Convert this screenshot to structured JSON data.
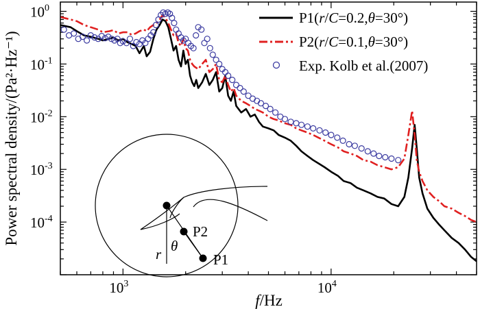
{
  "chart_data": {
    "type": "line",
    "x_scale": "log",
    "y_scale": "log",
    "xlim": [
      500,
      50000
    ],
    "ylim": [
      1e-05,
      1.5
    ],
    "xlabel_italic": "f",
    "xlabel_rest": "/Hz",
    "ylabel": "Power spectral density/(Pa²·Hz⁻¹)",
    "x_ticks": [
      {
        "value": 1000,
        "base": "10",
        "exp": "3"
      },
      {
        "value": 10000,
        "base": "10",
        "exp": "4"
      }
    ],
    "y_ticks": [
      {
        "value": 1.0,
        "label": "10",
        "exp": "0"
      },
      {
        "value": 0.1,
        "label": "10",
        "exp": "-1"
      },
      {
        "value": 0.01,
        "label": "10",
        "exp": "-2"
      },
      {
        "value": 0.001,
        "label": "10",
        "exp": "-3"
      },
      {
        "value": 0.0001,
        "label": "10",
        "exp": "-4"
      }
    ],
    "series": [
      {
        "name": "P1",
        "legend_parts": [
          "P1(",
          "r",
          "/",
          "C",
          "=0.2,",
          "θ",
          "=30°)"
        ],
        "color": "#000000",
        "style": "solid",
        "x": [
          500,
          560,
          600,
          650,
          700,
          760,
          800,
          860,
          900,
          950,
          1000,
          1050,
          1100,
          1150,
          1200,
          1260,
          1300,
          1350,
          1400,
          1450,
          1500,
          1550,
          1600,
          1650,
          1700,
          1750,
          1800,
          1850,
          1900,
          1950,
          2000,
          2050,
          2100,
          2150,
          2200,
          2250,
          2300,
          2400,
          2500,
          2600,
          2700,
          2800,
          2900,
          3000,
          3100,
          3200,
          3300,
          3400,
          3500,
          3700,
          3900,
          4100,
          4300,
          4500,
          4700,
          5000,
          5300,
          5600,
          6000,
          6400,
          6800,
          7200,
          7700,
          8200,
          8700,
          9300,
          10000,
          10800,
          11500,
          12400,
          13300,
          14300,
          15500,
          16700,
          18000,
          19500,
          21000,
          22500,
          23500,
          24500,
          25200,
          25800,
          26500,
          27500,
          29000,
          31000,
          33000,
          35000,
          38000,
          41000,
          44000,
          47000,
          50000
        ],
        "y": [
          0.55,
          0.5,
          0.42,
          0.35,
          0.33,
          0.3,
          0.28,
          0.3,
          0.32,
          0.28,
          0.3,
          0.26,
          0.24,
          0.22,
          0.16,
          0.22,
          0.14,
          0.17,
          0.3,
          0.45,
          0.55,
          0.7,
          0.65,
          0.5,
          0.3,
          0.18,
          0.22,
          0.12,
          0.09,
          0.18,
          0.1,
          0.12,
          0.06,
          0.045,
          0.038,
          0.05,
          0.035,
          0.045,
          0.065,
          0.04,
          0.05,
          0.07,
          0.03,
          0.035,
          0.06,
          0.025,
          0.02,
          0.03,
          0.016,
          0.012,
          0.014,
          0.01,
          0.011,
          0.008,
          0.0065,
          0.006,
          0.0055,
          0.0045,
          0.004,
          0.0035,
          0.0028,
          0.0022,
          0.0018,
          0.0015,
          0.0013,
          0.0011,
          0.0009,
          0.00075,
          0.0006,
          0.00055,
          0.00045,
          0.0004,
          0.00035,
          0.0003,
          0.00028,
          0.00022,
          0.0002,
          0.0003,
          0.0007,
          0.0025,
          0.007,
          0.0025,
          0.0007,
          0.00035,
          0.00018,
          0.00012,
          9e-05,
          7e-05,
          5e-05,
          4e-05,
          3e-05,
          2.2e-05,
          1.8e-05
        ]
      },
      {
        "name": "P2",
        "legend_parts": [
          "P2(",
          "r",
          "/",
          "C",
          "=0.1,",
          "θ",
          "=30°)"
        ],
        "color": "#e02020",
        "style": "dashdot",
        "x": [
          500,
          560,
          600,
          650,
          700,
          760,
          800,
          860,
          900,
          950,
          1000,
          1050,
          1100,
          1150,
          1200,
          1260,
          1300,
          1350,
          1400,
          1450,
          1500,
          1550,
          1600,
          1650,
          1700,
          1750,
          1800,
          1850,
          1900,
          1950,
          2000,
          2050,
          2100,
          2150,
          2200,
          2300,
          2400,
          2500,
          2600,
          2700,
          2800,
          2900,
          3000,
          3100,
          3200,
          3300,
          3400,
          3500,
          3700,
          3900,
          4100,
          4300,
          4500,
          4700,
          5000,
          5300,
          5600,
          6000,
          6400,
          6800,
          7200,
          7700,
          8200,
          8700,
          9300,
          10000,
          10800,
          11500,
          12400,
          13300,
          14300,
          15500,
          16700,
          18000,
          19500,
          21000,
          22500,
          23500,
          24500,
          25200,
          25800,
          26500,
          27500,
          29000,
          31000,
          33000,
          35000,
          38000,
          41000,
          44000,
          47000,
          50000
        ],
        "y": [
          0.78,
          0.7,
          0.65,
          0.55,
          0.5,
          0.45,
          0.4,
          0.42,
          0.44,
          0.38,
          0.4,
          0.4,
          0.36,
          0.38,
          0.42,
          0.45,
          0.42,
          0.5,
          0.55,
          0.6,
          0.7,
          0.85,
          0.75,
          0.6,
          0.45,
          0.35,
          0.38,
          0.25,
          0.22,
          0.3,
          0.2,
          0.18,
          0.12,
          0.1,
          0.09,
          0.08,
          0.1,
          0.12,
          0.07,
          0.08,
          0.1,
          0.05,
          0.045,
          0.06,
          0.04,
          0.03,
          0.035,
          0.025,
          0.02,
          0.018,
          0.016,
          0.014,
          0.013,
          0.012,
          0.01,
          0.009,
          0.0085,
          0.0075,
          0.007,
          0.006,
          0.0055,
          0.005,
          0.0045,
          0.004,
          0.0035,
          0.003,
          0.0026,
          0.0022,
          0.002,
          0.0018,
          0.0015,
          0.0014,
          0.0012,
          0.0011,
          0.001,
          0.0011,
          0.0016,
          0.0045,
          0.013,
          0.0045,
          0.0015,
          0.0009,
          0.0006,
          0.0004,
          0.0003,
          0.00025,
          0.0002,
          0.00018,
          0.00015,
          0.00013,
          0.00011,
          0.0001
        ]
      },
      {
        "name": "Exp. Kolb et al.(2007)",
        "legend_parts": [
          "Exp. Kolb et al.(2007)"
        ],
        "color": "#3a3aa0",
        "style": "markers",
        "x": [
          520,
          550,
          580,
          610,
          640,
          670,
          700,
          730,
          760,
          790,
          820,
          850,
          880,
          910,
          940,
          970,
          1000,
          1040,
          1080,
          1120,
          1160,
          1200,
          1240,
          1280,
          1320,
          1360,
          1400,
          1440,
          1480,
          1520,
          1560,
          1600,
          1640,
          1680,
          1720,
          1760,
          1800,
          1850,
          1900,
          1950,
          2000,
          2060,
          2120,
          2180,
          2240,
          2300,
          2380,
          2460,
          2540,
          2620,
          2700,
          2800,
          2900,
          3000,
          3100,
          3200,
          3350,
          3500,
          3650,
          3800,
          4000,
          4200,
          4400,
          4600,
          4850,
          5100,
          5400,
          5700,
          6000,
          6400,
          6800,
          7200,
          7700,
          8200,
          8800,
          9400,
          10000,
          10700,
          11400,
          12200,
          13000,
          14000,
          15000,
          16000,
          17000,
          18200,
          19500,
          21000
        ],
        "y": [
          0.45,
          0.35,
          0.38,
          0.3,
          0.33,
          0.28,
          0.35,
          0.32,
          0.3,
          0.34,
          0.31,
          0.33,
          0.3,
          0.28,
          0.3,
          0.25,
          0.27,
          0.25,
          0.3,
          0.22,
          0.26,
          0.24,
          0.28,
          0.25,
          0.3,
          0.35,
          0.4,
          0.55,
          0.7,
          0.85,
          0.95,
          0.9,
          0.95,
          0.9,
          0.75,
          0.6,
          0.45,
          0.38,
          0.32,
          0.28,
          0.3,
          0.25,
          0.22,
          0.2,
          0.35,
          0.5,
          0.45,
          0.25,
          0.3,
          0.2,
          0.15,
          0.12,
          0.1,
          0.08,
          0.07,
          0.06,
          0.05,
          0.04,
          0.035,
          0.03,
          0.025,
          0.022,
          0.02,
          0.018,
          0.016,
          0.014,
          0.012,
          0.01,
          0.009,
          0.008,
          0.0075,
          0.007,
          0.0065,
          0.006,
          0.0055,
          0.005,
          0.0045,
          0.004,
          0.0035,
          0.003,
          0.0028,
          0.0025,
          0.0022,
          0.002,
          0.0018,
          0.0017,
          0.0016,
          0.0015
        ]
      }
    ],
    "inset": {
      "points": [
        "P2",
        "P1"
      ],
      "symbols": [
        "r",
        "θ"
      ]
    }
  }
}
